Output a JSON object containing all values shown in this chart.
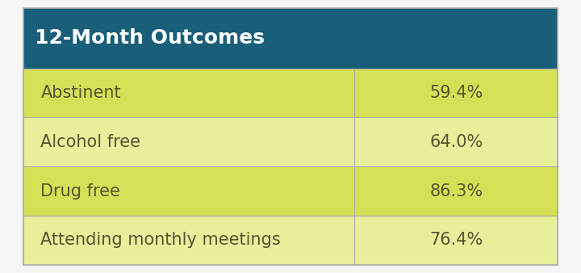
{
  "title": "12-Month Outcomes",
  "title_bg": "#1a5f7a",
  "title_color": "#ffffff",
  "header_fontsize": 18,
  "rows": [
    {
      "label": "Abstinent",
      "value": "59.4%",
      "bg": "#d4e157"
    },
    {
      "label": "Alcohol free",
      "value": "64.0%",
      "bg": "#e8ee9a"
    },
    {
      "label": "Drug free",
      "value": "86.3%",
      "bg": "#d4e157"
    },
    {
      "label": "Attending monthly meetings",
      "value": "76.4%",
      "bg": "#e8ee9a"
    }
  ],
  "label_color": "#555533",
  "value_color": "#555533",
  "label_fontsize": 15,
  "value_fontsize": 15,
  "divider_color": "#aaaaaa",
  "figure_bg": "#f5f5f5",
  "col_split": 0.62
}
